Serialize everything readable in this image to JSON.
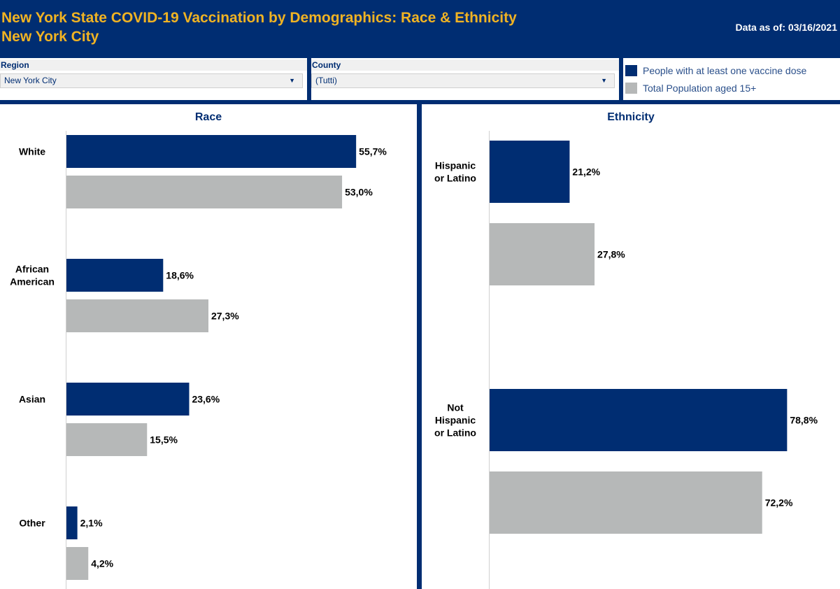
{
  "header": {
    "title_line1": "New York State COVID-19 Vaccination by Demographics: Race & Ethnicity",
    "title_line2": "New York City",
    "as_of": "Data as of: 03/16/2021"
  },
  "filters": {
    "region": {
      "label": "Region",
      "value": "New York City"
    },
    "county": {
      "label": "County",
      "value": "(Tutti)"
    }
  },
  "legend": {
    "items": [
      {
        "label": "People with at least one vaccine dose",
        "color": "#002d72"
      },
      {
        "label": "Total Population aged 15+",
        "color": "#b6b8b8"
      }
    ]
  },
  "chart_data": [
    {
      "type": "bar",
      "orientation": "horizontal",
      "title": "Race",
      "categories": [
        [
          "White"
        ],
        [
          "African",
          "American"
        ],
        [
          "Asian"
        ],
        [
          "Other"
        ]
      ],
      "series": [
        {
          "name": "People with at least one vaccine dose",
          "color": "#002d72",
          "values": [
            55.7,
            18.6,
            23.6,
            2.1
          ],
          "labels": [
            "55,7%",
            "18,6%",
            "23,6%",
            "2,1%"
          ]
        },
        {
          "name": "Total Population aged 15+",
          "color": "#b6b8b8",
          "values": [
            53.0,
            27.3,
            15.5,
            4.2
          ],
          "labels": [
            "53,0%",
            "27,3%",
            "15,5%",
            "4,2%"
          ]
        }
      ],
      "xlim": [
        0,
        62
      ]
    },
    {
      "type": "bar",
      "orientation": "horizontal",
      "title": "Ethnicity",
      "categories": [
        [
          "Hispanic",
          "or Latino"
        ],
        [
          "Not",
          "Hispanic",
          "or Latino"
        ]
      ],
      "series": [
        {
          "name": "People with at least one vaccine dose",
          "color": "#002d72",
          "values": [
            21.2,
            78.8
          ],
          "labels": [
            "21,2%",
            "78,8%"
          ]
        },
        {
          "name": "Total Population aged 15+",
          "color": "#b6b8b8",
          "values": [
            27.8,
            72.2
          ],
          "labels": [
            "27,8%",
            "72,2%"
          ]
        }
      ],
      "xlim": [
        0,
        88
      ]
    }
  ]
}
